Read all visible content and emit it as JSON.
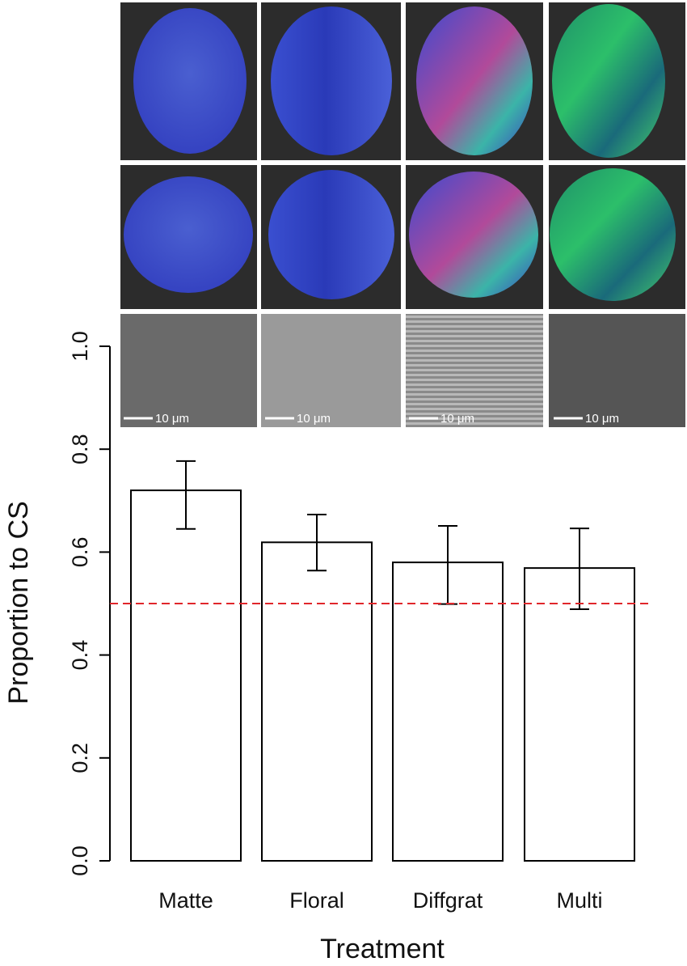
{
  "chart_data": {
    "type": "bar",
    "categories": [
      "Matte",
      "Floral",
      "Diffgrat",
      "Multi"
    ],
    "values": [
      0.72,
      0.619,
      0.58,
      0.569
    ],
    "lower": [
      0.645,
      0.564,
      0.499,
      0.489
    ],
    "upper": [
      0.777,
      0.673,
      0.651,
      0.646
    ],
    "color": "#ffffff",
    "ylim": [
      0,
      1.0
    ],
    "yticks": [
      {
        "value": 0,
        "label": "0.0"
      },
      0.2,
      0.4,
      0.6,
      0.8,
      {
        "value": 1.0,
        "label": "1.0"
      }
    ],
    "y_label": "Proportion to CS",
    "x_label": "Treatment",
    "reference_line": {
      "value": 0.5,
      "color": "#e0262b"
    },
    "annotations": [
      "10 μm",
      "10 μm",
      "10 μm",
      "10 μm"
    ]
  }
}
